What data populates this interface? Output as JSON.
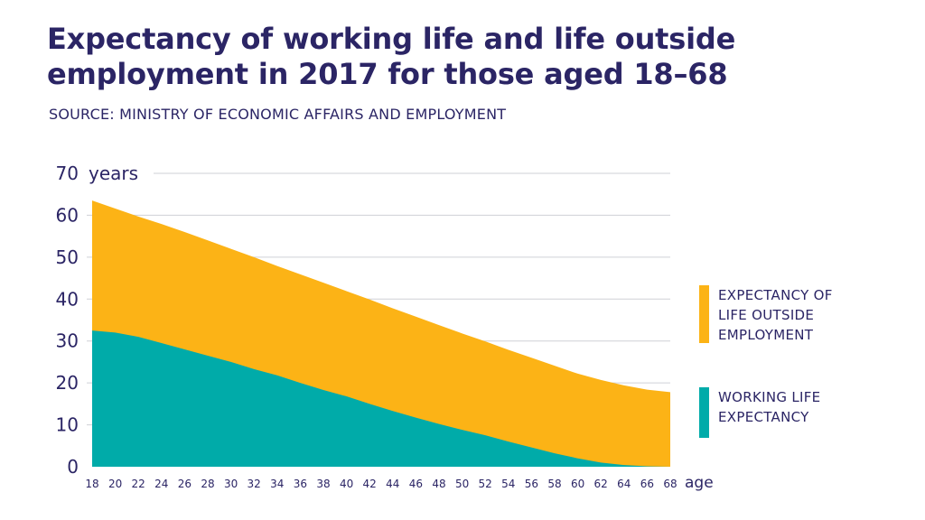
{
  "title_lines": [
    "Expectancy of working life and life outside",
    "employment in 2017 for those aged 18–68"
  ],
  "source": "SOURCE: MINISTRY OF ECONOMIC AFFAIRS AND EMPLOYMENT",
  "colors": {
    "text": "#2b2565",
    "outside": "#fcb316",
    "working": "#00aba9",
    "grid": "#cfd0d6"
  },
  "chart_data": {
    "type": "area",
    "stacked": true,
    "title": "Expectancy of working life and life outside employment in 2017 for those aged 18–68",
    "xlabel": "age",
    "ylabel": "years",
    "ylim": [
      0,
      70
    ],
    "yticks": [
      0,
      10,
      20,
      30,
      40,
      50,
      60,
      70
    ],
    "xticks": [
      18,
      20,
      22,
      24,
      26,
      28,
      30,
      32,
      34,
      36,
      38,
      40,
      42,
      44,
      46,
      48,
      50,
      52,
      54,
      56,
      58,
      60,
      62,
      64,
      66,
      68
    ],
    "x": [
      18,
      20,
      22,
      24,
      26,
      28,
      30,
      32,
      34,
      36,
      38,
      40,
      42,
      44,
      46,
      48,
      50,
      52,
      54,
      56,
      58,
      60,
      62,
      64,
      66,
      68
    ],
    "series": [
      {
        "name": "WORKING LIFE EXPECTANCY",
        "color": "#00aba9",
        "values": [
          32.5,
          32.0,
          31.0,
          29.5,
          28.0,
          26.5,
          25.0,
          23.3,
          21.8,
          20.0,
          18.3,
          16.8,
          15.0,
          13.3,
          11.7,
          10.2,
          8.8,
          7.5,
          6.0,
          4.6,
          3.2,
          2.0,
          1.0,
          0.4,
          0.1,
          0.0
        ]
      },
      {
        "name": "EXPECTANCY OF LIFE OUTSIDE EMPLOYMENT",
        "color": "#fcb316",
        "values": [
          31.0,
          29.6,
          28.7,
          28.4,
          28.0,
          27.5,
          27.0,
          26.7,
          26.1,
          25.9,
          25.6,
          25.1,
          24.9,
          24.5,
          24.1,
          23.6,
          23.0,
          22.4,
          21.9,
          21.4,
          20.9,
          20.2,
          19.7,
          19.0,
          18.3,
          17.8
        ]
      }
    ],
    "legend": [
      {
        "label": "EXPECTANCY OF\nLIFE OUTSIDE\nEMPLOYMENT",
        "color": "#fcb316"
      },
      {
        "label": "WORKING LIFE\nEXPECTANCY",
        "color": "#00aba9"
      }
    ],
    "legend_position": "right",
    "grid": true
  }
}
